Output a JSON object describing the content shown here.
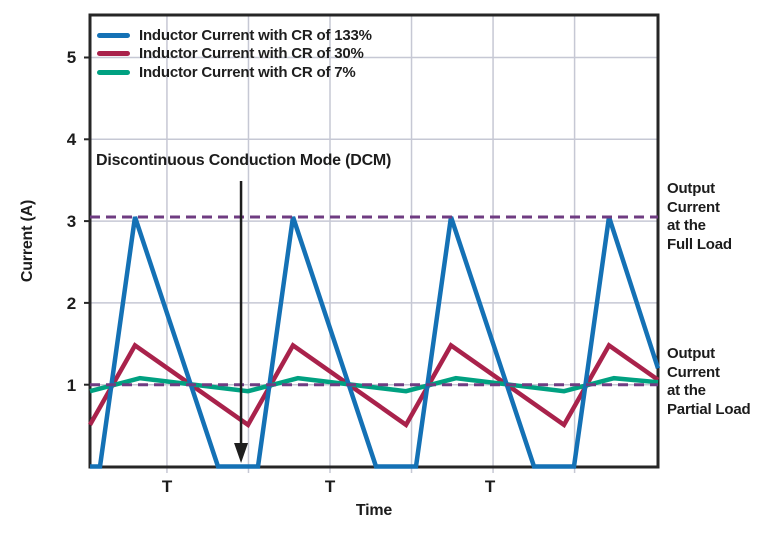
{
  "figure": {
    "y_axis": {
      "label": "Current (A)",
      "ticks": [
        "5",
        "4",
        "3",
        "2",
        "1"
      ]
    },
    "x_axis": {
      "label": "Time",
      "period_markers": [
        "T",
        "T",
        "T"
      ]
    },
    "legend": {
      "items": [
        {
          "label": "Inductor Current with CR of 133%",
          "color": "#1471b5"
        },
        {
          "label": "Inductor Current with CR of 30%",
          "color": "#a9224b"
        },
        {
          "label": "Inductor Current with CR of 7%",
          "color": "#00a181"
        }
      ]
    },
    "annotations": {
      "dcm_text": "Discontinuous Conduction Mode (DCM)",
      "full_load_label": "Output\nCurrent\nat the\nFull Load",
      "partial_load_label": "Output\nCurrent\nat the\nPartial Load"
    },
    "colors": {
      "grid": "#c6c8d4",
      "frame": "#262626",
      "reference_dashed": "#6f3c82",
      "arrow": "#1e1e1e"
    }
  },
  "chart_data": {
    "type": "line",
    "title": "",
    "xlabel": "Time",
    "ylabel": "Current (A)",
    "x_unit": "switching periods T",
    "ylim": [
      0,
      5.55
    ],
    "xlim_T": [
      0,
      3.595
    ],
    "y_ticks": [
      1,
      2,
      3,
      4,
      5
    ],
    "x_gridlines_T": [
      0.487,
      1.003,
      1.519,
      2.035,
      2.551,
      3.067
    ],
    "grid": true,
    "legend_position": "top-left-inside",
    "series": [
      {
        "name": "Inductor Current with CR of 30%",
        "color": "#a9224b",
        "points": [
          [
            0,
            0.51
          ],
          [
            0.285,
            1.48
          ],
          [
            1.0,
            0.51
          ],
          [
            1.285,
            1.48
          ],
          [
            2.0,
            0.51
          ],
          [
            2.285,
            1.48
          ],
          [
            3.0,
            0.51
          ],
          [
            3.285,
            1.48
          ],
          [
            3.595,
            1.06
          ]
        ]
      },
      {
        "name": "Inductor Current with CR of 7%",
        "color": "#00a181",
        "points": [
          [
            0,
            0.92
          ],
          [
            0.316,
            1.08
          ],
          [
            1.0,
            0.92
          ],
          [
            1.316,
            1.08
          ],
          [
            2.0,
            0.92
          ],
          [
            2.316,
            1.08
          ],
          [
            3.0,
            0.92
          ],
          [
            3.316,
            1.08
          ],
          [
            3.595,
            1.03
          ]
        ]
      },
      {
        "name": "Inductor Current with CR of 133%",
        "color": "#1471b5",
        "points": [
          [
            0,
            0
          ],
          [
            0.063,
            0
          ],
          [
            0.285,
            3.05
          ],
          [
            0.81,
            0
          ],
          [
            1.063,
            0
          ],
          [
            1.285,
            3.05
          ],
          [
            1.81,
            0
          ],
          [
            2.063,
            0
          ],
          [
            2.285,
            3.05
          ],
          [
            2.81,
            0
          ],
          [
            3.063,
            0
          ],
          [
            3.285,
            3.05
          ],
          [
            3.595,
            1.2
          ]
        ]
      }
    ],
    "reference_lines": [
      {
        "label": "Output Current at the Full Load",
        "value": 3.05,
        "style": "dashed",
        "color": "#6f3c82"
      },
      {
        "label": "Output Current at the Partial Load",
        "value": 1.0,
        "style": "dashed",
        "color": "#6f3c82"
      }
    ],
    "annotation_arrow": {
      "text": "Discontinuous Conduction Mode (DCM)",
      "x_T": 0.956,
      "points_to_value": 0
    }
  }
}
